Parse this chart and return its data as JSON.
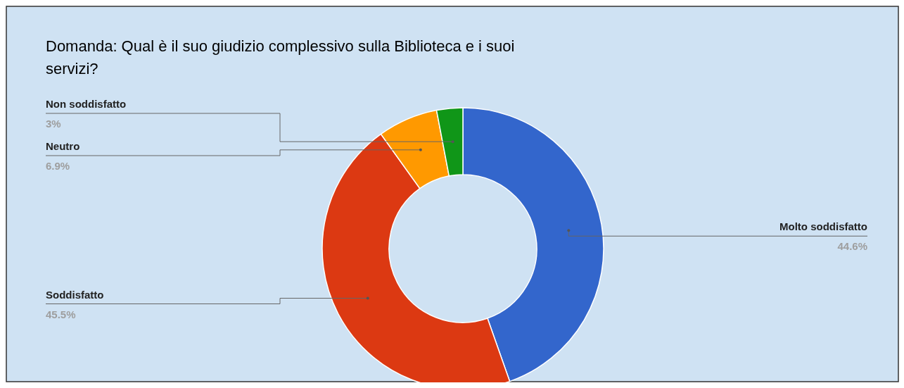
{
  "chart_data": {
    "type": "donut",
    "title": "Domanda: Qual è il suo giudizio complessivo sulla Biblioteca e i suoi servizi?",
    "categories": [
      "Molto soddisfatto",
      "Soddisfatto",
      "Neutro",
      "Non soddisfatto"
    ],
    "values": [
      44.6,
      45.5,
      6.9,
      3
    ],
    "colors": [
      "#3366cc",
      "#dc3912",
      "#ff9900",
      "#109618"
    ],
    "value_labels": [
      "44.6%",
      "45.5%",
      "6.9%",
      "3%"
    ]
  }
}
